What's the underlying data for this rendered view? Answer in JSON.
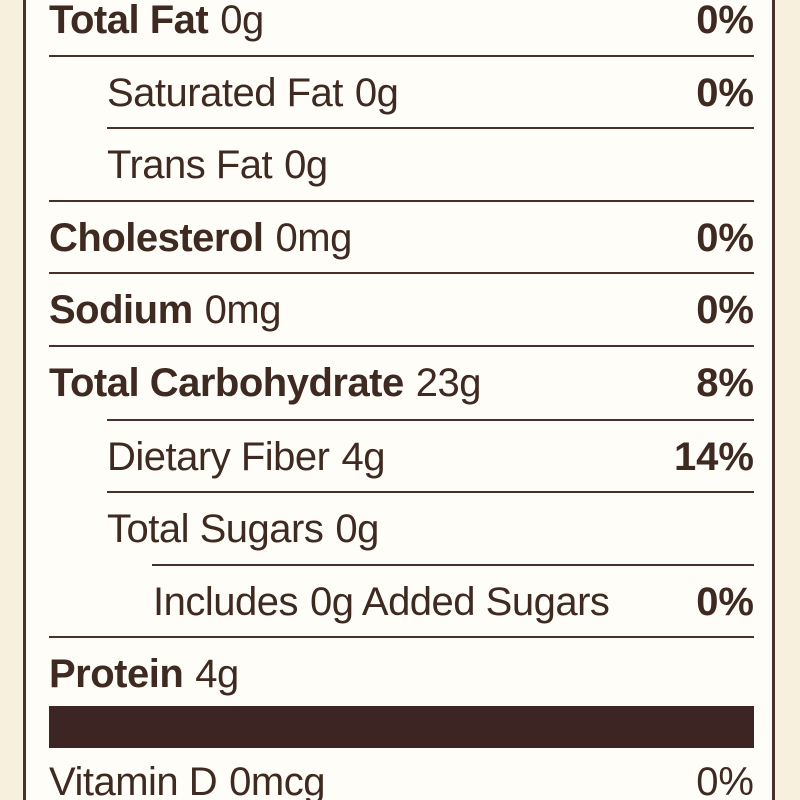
{
  "rows": [
    {
      "name": "Total Fat",
      "amount": "0g",
      "dv": "0%"
    },
    {
      "name": "Saturated Fat",
      "amount": "0g",
      "dv": "0%"
    },
    {
      "name": "Trans Fat",
      "amount": "0g",
      "dv": ""
    },
    {
      "name": "Cholesterol",
      "amount": "0mg",
      "dv": "0%"
    },
    {
      "name": "Sodium",
      "amount": "0mg",
      "dv": "0%"
    },
    {
      "name": "Total Carbohydrate",
      "amount": "23g",
      "dv": "8%"
    },
    {
      "name": "Dietary Fiber",
      "amount": "4g",
      "dv": "14%"
    },
    {
      "name": "Total Sugars",
      "amount": "0g",
      "dv": ""
    },
    {
      "name": "Includes",
      "amount": "0g Added Sugars",
      "dv": "0%"
    },
    {
      "name": "Protein",
      "amount": "4g",
      "dv": ""
    },
    {
      "name": "Vitamin D",
      "amount": "0mcg",
      "dv": "0%"
    }
  ],
  "colors": {
    "background": "#f6f0dd",
    "panel": "#fffdf8",
    "text": "#3f2a22",
    "rule": "#4a3028",
    "thick_bar": "#3c2522"
  }
}
